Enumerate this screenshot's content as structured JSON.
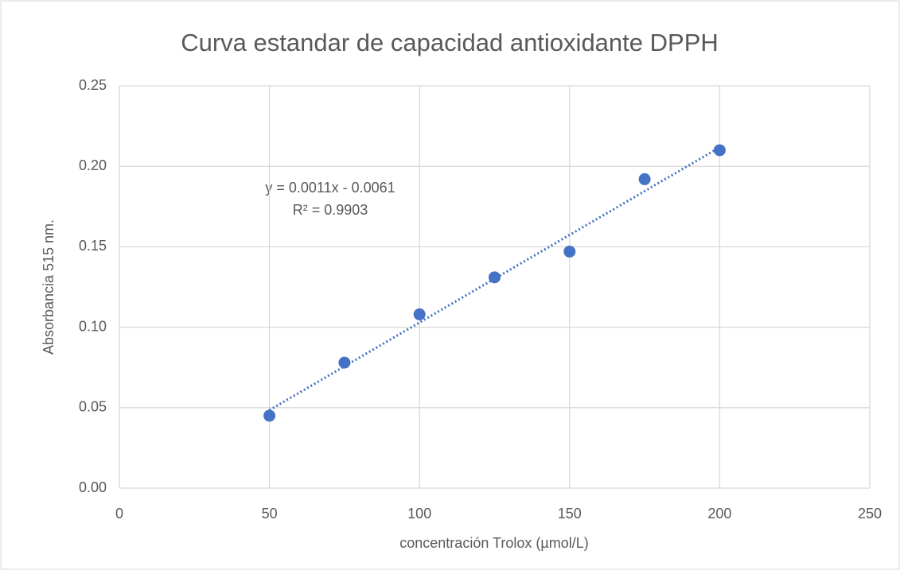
{
  "chart_data": {
    "type": "scatter",
    "title": "Curva estandar de capacidad antioxidante DPPH",
    "x_label": "concentración Trolox (µmol/L)",
    "y_label": "Absorbancia 515 nm.",
    "annotations": [
      "y = 0.0011x - 0.0061",
      "R² = 0.9903"
    ],
    "x": [
      50,
      75,
      100,
      125,
      150,
      175,
      200
    ],
    "series": [
      {
        "name": "Absorbancia",
        "color": "#4472c4",
        "values": [
          0.045,
          0.078,
          0.108,
          0.131,
          0.147,
          0.192,
          0.21
        ]
      }
    ],
    "trendline": "linear",
    "xlim": [
      0,
      250
    ],
    "xticks": [
      0,
      50,
      100,
      150,
      200,
      250
    ],
    "ylim": [
      0,
      0.25
    ],
    "yticks": [
      {
        "value": 0,
        "label": "0.00"
      },
      0.05,
      {
        "value": 0.1,
        "label": "0.10"
      },
      0.15,
      {
        "value": 0.2,
        "label": "0.20"
      },
      0.25
    ],
    "grid": true
  }
}
